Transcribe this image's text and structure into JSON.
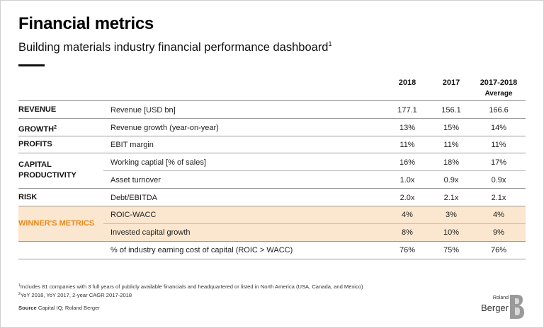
{
  "header": {
    "title": "Financial metrics",
    "subtitle": "Building materials industry financial performance dashboard",
    "subtitle_note": "1"
  },
  "columns": {
    "c2018": "2018",
    "c2017": "2017",
    "avg_line1": "2017-2018",
    "avg_line2": "Average"
  },
  "categories": {
    "revenue": "REVENUE",
    "growth": "GROWTH",
    "growth_note": "2",
    "profits": "PROFITS",
    "capital_line1": "CAPITAL",
    "capital_line2": "PRODUCTIVITY",
    "risk": "RISK",
    "winners": "WINNER'S METRICS"
  },
  "rows": [
    {
      "metric": "Revenue [USD bn]",
      "v2018": "177.1",
      "v2017": "156.1",
      "avg": "166.6"
    },
    {
      "metric": "Revenue growth (year-on-year)",
      "v2018": "13%",
      "v2017": "15%",
      "avg": "14%"
    },
    {
      "metric": "EBIT margin",
      "v2018": "11%",
      "v2017": "11%",
      "avg": "11%"
    },
    {
      "metric": "Working captial [% of sales]",
      "v2018": "16%",
      "v2017": "18%",
      "avg": "17%"
    },
    {
      "metric": "Asset turnover",
      "v2018": "1.0x",
      "v2017": "0.9x",
      "avg": "0.9x"
    },
    {
      "metric": "Debt/EBITDA",
      "v2018": "2.0x",
      "v2017": "2.1x",
      "avg": "2.1x"
    },
    {
      "metric": "ROIC-WACC",
      "v2018": "4%",
      "v2017": "3%",
      "avg": "4%"
    },
    {
      "metric": "Invested capital growth",
      "v2018": "8%",
      "v2017": "10%",
      "avg": "9%"
    },
    {
      "metric": "% of industry earning cost of capital (ROIC > WACC)",
      "v2018": "76%",
      "v2017": "75%",
      "avg": "76%"
    }
  ],
  "footnotes": {
    "n1_mark": "1",
    "n1": "Includes 81 companies with 3 full years of publicly available financials and headquartered or listed in North America (USA, Canada, and Mexico)",
    "n2_mark": "2",
    "n2": "YoY 2018, YoY 2017, 2-year CAGR 2017-2018",
    "source_label": "Source",
    "source": "Capital IQ; Roland Berger"
  },
  "logo": {
    "small": "Roland",
    "big": "Berger"
  },
  "colors": {
    "accent_orange": "#e48a1e",
    "band_fill": "#fbe6cf"
  }
}
